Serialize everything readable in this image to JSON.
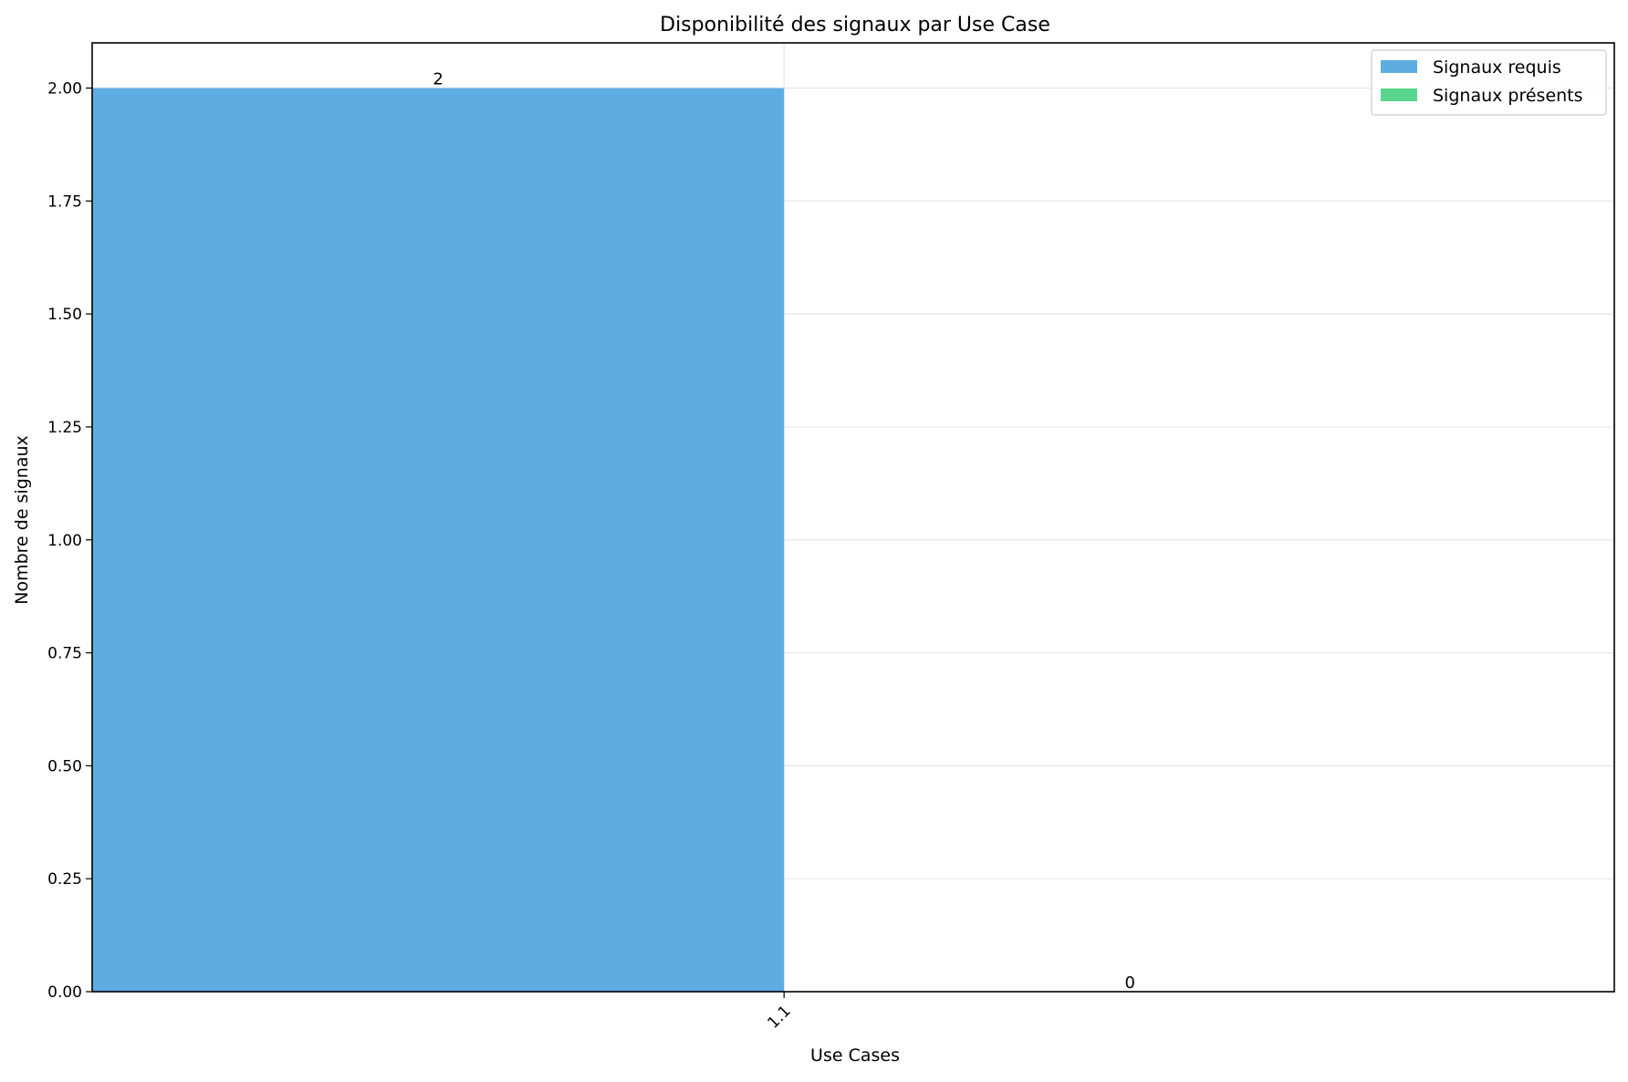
{
  "chart_data": {
    "type": "bar",
    "title": "Disponibilité des signaux par Use Case",
    "xlabel": "Use Cases",
    "ylabel": "Nombre de signaux",
    "categories": [
      "1.1"
    ],
    "series": [
      {
        "name": "Signaux requis",
        "values": [
          2
        ],
        "color": "#5dade2"
      },
      {
        "name": "Signaux présents",
        "values": [
          0
        ],
        "color": "#58d68d"
      }
    ],
    "data_labels": [
      "2",
      "0"
    ],
    "ylim": [
      0,
      2.1
    ],
    "yticks": [
      0,
      0.25,
      0.5,
      0.75,
      1.0,
      1.25,
      1.5,
      1.75,
      2.0
    ],
    "ytick_labels": [
      "0.00",
      "0.25",
      "0.50",
      "0.75",
      "1.00",
      "1.25",
      "1.50",
      "1.75",
      "2.00"
    ],
    "xlim": [
      -0.5,
      0.6
    ],
    "bar_width": 0.5,
    "grid": true,
    "legend_position": "top-right"
  }
}
